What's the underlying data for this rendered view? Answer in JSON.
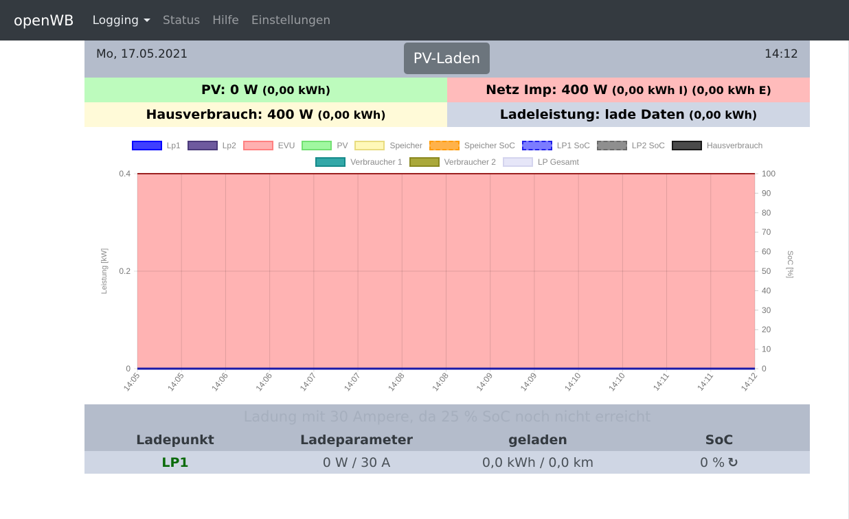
{
  "nav": {
    "brand": "openWB",
    "items": [
      {
        "label": "Logging"
      },
      {
        "label": "Status"
      },
      {
        "label": "Hilfe"
      },
      {
        "label": "Einstellungen"
      }
    ]
  },
  "header": {
    "date": "Mo, 17.05.2021",
    "mode_label": "PV-Laden",
    "time": "14:12"
  },
  "summary": {
    "pv_main": "PV: 0 W",
    "pv_energy": "(0,00 kWh)",
    "netz_main": "Netz Imp: 400 W",
    "netz_energy": "(0,00 kWh I) (0,00 kWh E)",
    "haus_main": "Hausverbrauch: 400 W",
    "haus_energy": "(0,00 kWh)",
    "lade_main": "Ladeleistung: lade Daten",
    "lade_energy": "(0,00 kWh)"
  },
  "legend": [
    {
      "label": "Lp1",
      "fill": "#3f3fff",
      "border": "#0000ff",
      "dashed": false
    },
    {
      "label": "Lp2",
      "fill": "#6e5a9e",
      "border": "#4b3a7a",
      "dashed": false
    },
    {
      "label": "EVU",
      "fill": "#ffb0b0",
      "border": "#ff8080",
      "dashed": false
    },
    {
      "label": "PV",
      "fill": "#a0f8a0",
      "border": "#72e072",
      "dashed": false
    },
    {
      "label": "Speicher",
      "fill": "#fff8b8",
      "border": "#e8dc80",
      "dashed": false
    },
    {
      "label": "Speicher SoC",
      "fill": "#ffb24a",
      "border": "#ff9a00",
      "dashed": true
    },
    {
      "label": "LP1 SoC",
      "fill": "#7c7cff",
      "border": "#2020e8",
      "dashed": true
    },
    {
      "label": "LP2 SoC",
      "fill": "#8f8f8f",
      "border": "#6a6a6a",
      "dashed": true
    },
    {
      "label": "Hausverbrauch",
      "fill": "#4a4a4a",
      "border": "#1a1a1a",
      "dashed": false
    },
    {
      "label": "Verbraucher 1",
      "fill": "#33a8a8",
      "border": "#168a8a",
      "dashed": false
    },
    {
      "label": "Verbraucher 2",
      "fill": "#aaa83a",
      "border": "#8a8820",
      "dashed": false
    },
    {
      "label": "LP Gesamt",
      "fill": "#e6e6f8",
      "border": "#d4d4ee",
      "dashed": false
    }
  ],
  "chart_data": {
    "type": "area",
    "ylabel": "Leistung [kW]",
    "y2label": "SoC [%]",
    "ylim": [
      0,
      0.4
    ],
    "y2lim": [
      0,
      100
    ],
    "y_ticks": [
      "0",
      "0.2",
      "0.4"
    ],
    "y2_ticks": [
      "0",
      "10",
      "20",
      "30",
      "40",
      "50",
      "60",
      "70",
      "80",
      "90",
      "100"
    ],
    "x": [
      "14:05",
      "14:05",
      "14:06",
      "14:06",
      "14:07",
      "14:07",
      "14:08",
      "14:08",
      "14:09",
      "14:09",
      "14:10",
      "14:10",
      "14:11",
      "14:11",
      "14:12"
    ],
    "series": [
      {
        "name": "EVU",
        "values": [
          0.4,
          0.4,
          0.4,
          0.4,
          0.4,
          0.4,
          0.4,
          0.4,
          0.4,
          0.4,
          0.4,
          0.4,
          0.4,
          0.4,
          0.4
        ]
      },
      {
        "name": "Lp1",
        "values": [
          0,
          0,
          0,
          0,
          0,
          0,
          0,
          0,
          0,
          0,
          0,
          0,
          0,
          0,
          0
        ]
      }
    ],
    "grid": true,
    "legend_position": "top"
  },
  "status_text": "Ladung mit 30 Ampere, da 25 % SoC noch nicht erreicht",
  "table": {
    "headers": [
      "Ladepunkt",
      "Ladeparameter",
      "geladen",
      "SoC"
    ],
    "row": {
      "name": "LP1",
      "params": "0 W / 30 A",
      "charged": "0,0 kWh / 0,0 km",
      "soc": "0 %"
    }
  }
}
